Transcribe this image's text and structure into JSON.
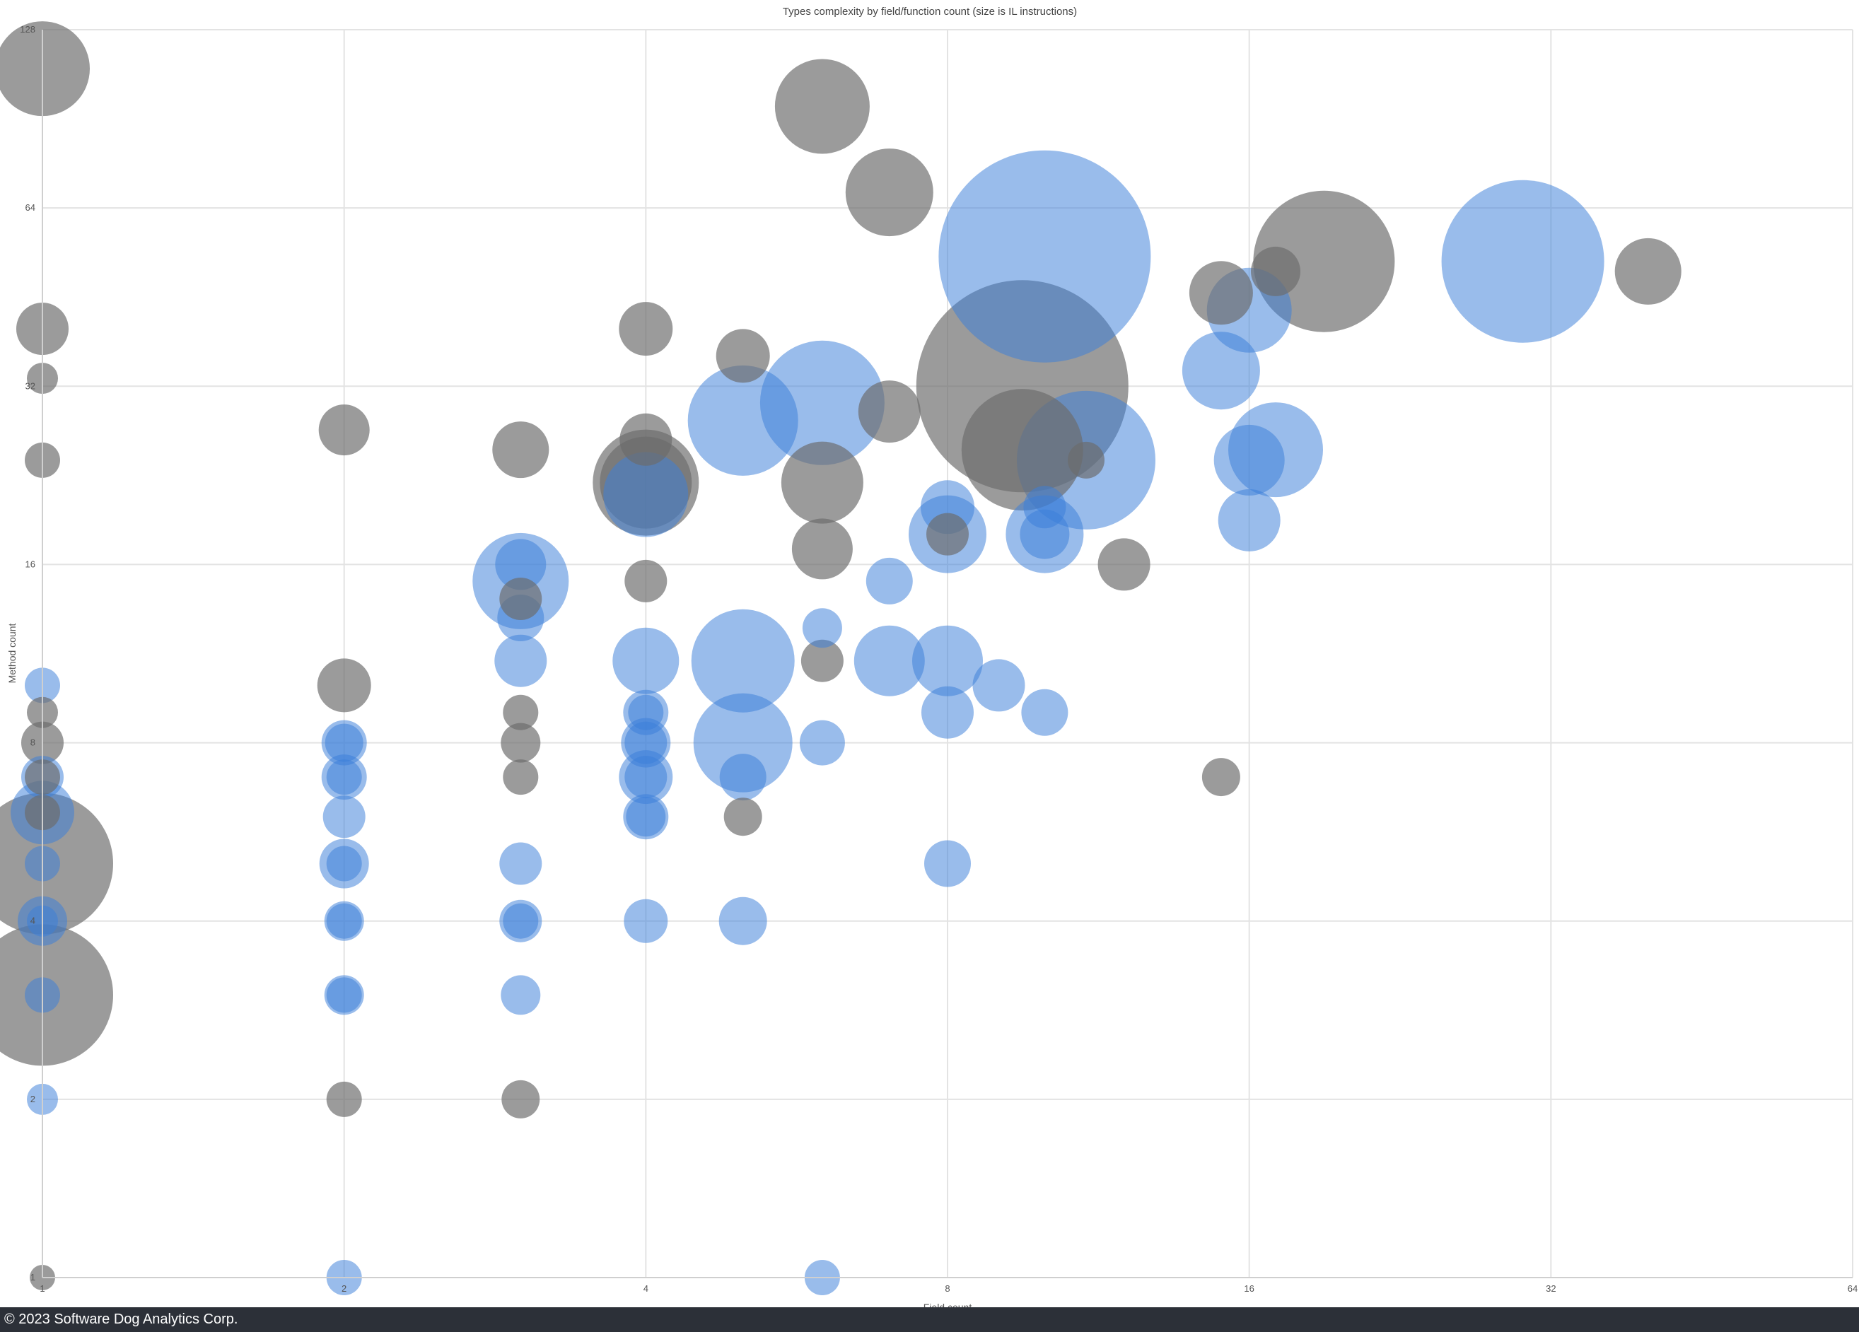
{
  "footer": {
    "text": "© 2023 Software Dog Analytics Corp."
  },
  "chart_data": {
    "type": "scatter",
    "title": "Types complexity by field/function count (size is IL instructions)",
    "xlabel": "Field count",
    "ylabel": "Method count",
    "xscale": "log2",
    "yscale": "log2",
    "xlim": [
      1,
      64
    ],
    "ylim": [
      1,
      128
    ],
    "xticks": [
      1,
      2,
      4,
      8,
      16,
      32,
      64
    ],
    "yticks": [
      1,
      2,
      4,
      8,
      16,
      32,
      64,
      128
    ],
    "grid": true,
    "legend": "none",
    "colors": {
      "gray": "#6b6b6b",
      "blue": "#3b7fd9"
    },
    "size_units": "relative IL instruction size",
    "points": [
      {
        "x": 1,
        "y": 110,
        "s": 67,
        "c": "gray"
      },
      {
        "x": 1,
        "y": 40,
        "s": 37,
        "c": "gray"
      },
      {
        "x": 1,
        "y": 33,
        "s": 22,
        "c": "gray"
      },
      {
        "x": 1,
        "y": 24,
        "s": 25,
        "c": "gray"
      },
      {
        "x": 1,
        "y": 10,
        "s": 25,
        "c": "blue"
      },
      {
        "x": 1,
        "y": 9,
        "s": 22,
        "c": "gray"
      },
      {
        "x": 1,
        "y": 8,
        "s": 30,
        "c": "gray"
      },
      {
        "x": 1,
        "y": 7,
        "s": 30,
        "c": "blue"
      },
      {
        "x": 1,
        "y": 7,
        "s": 25,
        "c": "gray"
      },
      {
        "x": 1,
        "y": 6.1,
        "s": 45,
        "c": "blue"
      },
      {
        "x": 1,
        "y": 6.1,
        "s": 25,
        "c": "gray"
      },
      {
        "x": 1,
        "y": 5,
        "s": 100,
        "c": "gray"
      },
      {
        "x": 1,
        "y": 5,
        "s": 25,
        "c": "blue"
      },
      {
        "x": 1,
        "y": 4,
        "s": 35,
        "c": "blue"
      },
      {
        "x": 1,
        "y": 4,
        "s": 22,
        "c": "blue"
      },
      {
        "x": 1,
        "y": 3,
        "s": 100,
        "c": "gray"
      },
      {
        "x": 1,
        "y": 3,
        "s": 25,
        "c": "blue"
      },
      {
        "x": 1,
        "y": 2,
        "s": 22,
        "c": "blue"
      },
      {
        "x": 1,
        "y": 1,
        "s": 18,
        "c": "gray"
      },
      {
        "x": 2,
        "y": 27,
        "s": 36,
        "c": "gray"
      },
      {
        "x": 2,
        "y": 10,
        "s": 38,
        "c": "gray"
      },
      {
        "x": 2,
        "y": 8,
        "s": 32,
        "c": "blue"
      },
      {
        "x": 2,
        "y": 8,
        "s": 27,
        "c": "blue"
      },
      {
        "x": 2,
        "y": 7,
        "s": 32,
        "c": "blue"
      },
      {
        "x": 2,
        "y": 7,
        "s": 25,
        "c": "blue"
      },
      {
        "x": 2,
        "y": 6,
        "s": 30,
        "c": "blue"
      },
      {
        "x": 2,
        "y": 5,
        "s": 35,
        "c": "blue"
      },
      {
        "x": 2,
        "y": 5,
        "s": 25,
        "c": "blue"
      },
      {
        "x": 2,
        "y": 4,
        "s": 28,
        "c": "blue"
      },
      {
        "x": 2,
        "y": 4,
        "s": 25,
        "c": "blue"
      },
      {
        "x": 2,
        "y": 3,
        "s": 28,
        "c": "blue"
      },
      {
        "x": 2,
        "y": 3,
        "s": 25,
        "c": "blue"
      },
      {
        "x": 2,
        "y": 2,
        "s": 25,
        "c": "gray"
      },
      {
        "x": 2,
        "y": 1,
        "s": 25,
        "c": "blue"
      },
      {
        "x": 3,
        "y": 25,
        "s": 40,
        "c": "gray"
      },
      {
        "x": 3,
        "y": 15,
        "s": 68,
        "c": "blue"
      },
      {
        "x": 3,
        "y": 16,
        "s": 36,
        "c": "blue"
      },
      {
        "x": 3,
        "y": 14,
        "s": 30,
        "c": "gray"
      },
      {
        "x": 3,
        "y": 13,
        "s": 33,
        "c": "blue"
      },
      {
        "x": 3,
        "y": 11,
        "s": 37,
        "c": "blue"
      },
      {
        "x": 3,
        "y": 9,
        "s": 25,
        "c": "gray"
      },
      {
        "x": 3,
        "y": 8,
        "s": 28,
        "c": "gray"
      },
      {
        "x": 3,
        "y": 7,
        "s": 25,
        "c": "gray"
      },
      {
        "x": 3,
        "y": 5,
        "s": 30,
        "c": "blue"
      },
      {
        "x": 3,
        "y": 4,
        "s": 30,
        "c": "blue"
      },
      {
        "x": 3,
        "y": 4,
        "s": 25,
        "c": "blue"
      },
      {
        "x": 3,
        "y": 3,
        "s": 28,
        "c": "blue"
      },
      {
        "x": 3,
        "y": 2,
        "s": 27,
        "c": "gray"
      },
      {
        "x": 4,
        "y": 40,
        "s": 38,
        "c": "gray"
      },
      {
        "x": 4,
        "y": 26,
        "s": 37,
        "c": "gray"
      },
      {
        "x": 4,
        "y": 22,
        "s": 75,
        "c": "gray"
      },
      {
        "x": 4,
        "y": 22,
        "s": 65,
        "c": "gray"
      },
      {
        "x": 4,
        "y": 21,
        "s": 60,
        "c": "blue"
      },
      {
        "x": 4,
        "y": 15,
        "s": 30,
        "c": "gray"
      },
      {
        "x": 4,
        "y": 11,
        "s": 47,
        "c": "blue"
      },
      {
        "x": 4,
        "y": 9,
        "s": 32,
        "c": "blue"
      },
      {
        "x": 4,
        "y": 9,
        "s": 25,
        "c": "blue"
      },
      {
        "x": 4,
        "y": 8,
        "s": 35,
        "c": "blue"
      },
      {
        "x": 4,
        "y": 8,
        "s": 30,
        "c": "blue"
      },
      {
        "x": 4,
        "y": 7,
        "s": 38,
        "c": "blue"
      },
      {
        "x": 4,
        "y": 7,
        "s": 30,
        "c": "blue"
      },
      {
        "x": 4,
        "y": 6,
        "s": 32,
        "c": "blue"
      },
      {
        "x": 4,
        "y": 6,
        "s": 28,
        "c": "blue"
      },
      {
        "x": 4,
        "y": 4,
        "s": 31,
        "c": "blue"
      },
      {
        "x": 5,
        "y": 36,
        "s": 38,
        "c": "gray"
      },
      {
        "x": 5,
        "y": 28,
        "s": 78,
        "c": "blue"
      },
      {
        "x": 5,
        "y": 11,
        "s": 73,
        "c": "blue"
      },
      {
        "x": 5,
        "y": 8,
        "s": 70,
        "c": "blue"
      },
      {
        "x": 5,
        "y": 7,
        "s": 33,
        "c": "blue"
      },
      {
        "x": 5,
        "y": 6,
        "s": 27,
        "c": "gray"
      },
      {
        "x": 5,
        "y": 4,
        "s": 34,
        "c": "blue"
      },
      {
        "x": 6,
        "y": 95,
        "s": 67,
        "c": "gray"
      },
      {
        "x": 6,
        "y": 30,
        "s": 88,
        "c": "blue"
      },
      {
        "x": 6,
        "y": 22,
        "s": 58,
        "c": "gray"
      },
      {
        "x": 6,
        "y": 17,
        "s": 43,
        "c": "gray"
      },
      {
        "x": 6,
        "y": 12.5,
        "s": 28,
        "c": "blue"
      },
      {
        "x": 6,
        "y": 11,
        "s": 30,
        "c": "gray"
      },
      {
        "x": 6,
        "y": 8,
        "s": 32,
        "c": "blue"
      },
      {
        "x": 6,
        "y": 1,
        "s": 25,
        "c": "blue"
      },
      {
        "x": 7,
        "y": 68,
        "s": 62,
        "c": "gray"
      },
      {
        "x": 7,
        "y": 29,
        "s": 44,
        "c": "gray"
      },
      {
        "x": 7,
        "y": 15,
        "s": 33,
        "c": "blue"
      },
      {
        "x": 7,
        "y": 11,
        "s": 50,
        "c": "blue"
      },
      {
        "x": 8,
        "y": 20,
        "s": 38,
        "c": "blue"
      },
      {
        "x": 8,
        "y": 18,
        "s": 55,
        "c": "blue"
      },
      {
        "x": 8,
        "y": 18,
        "s": 30,
        "c": "gray"
      },
      {
        "x": 8,
        "y": 11,
        "s": 50,
        "c": "blue"
      },
      {
        "x": 8,
        "y": 9,
        "s": 37,
        "c": "blue"
      },
      {
        "x": 8,
        "y": 5,
        "s": 33,
        "c": "blue"
      },
      {
        "x": 9,
        "y": 10,
        "s": 37,
        "c": "blue"
      },
      {
        "x": 9.5,
        "y": 32,
        "s": 150,
        "c": "gray"
      },
      {
        "x": 9.5,
        "y": 25,
        "s": 86,
        "c": "gray"
      },
      {
        "x": 10,
        "y": 53,
        "s": 150,
        "c": "blue"
      },
      {
        "x": 10,
        "y": 20,
        "s": 30,
        "c": "blue"
      },
      {
        "x": 10,
        "y": 18,
        "s": 55,
        "c": "blue"
      },
      {
        "x": 10,
        "y": 18,
        "s": 35,
        "c": "blue"
      },
      {
        "x": 10,
        "y": 9,
        "s": 33,
        "c": "blue"
      },
      {
        "x": 11,
        "y": 24,
        "s": 98,
        "c": "blue"
      },
      {
        "x": 11,
        "y": 24,
        "s": 26,
        "c": "gray"
      },
      {
        "x": 12,
        "y": 16,
        "s": 37,
        "c": "gray"
      },
      {
        "x": 15,
        "y": 46,
        "s": 45,
        "c": "gray"
      },
      {
        "x": 15,
        "y": 34,
        "s": 55,
        "c": "blue"
      },
      {
        "x": 15,
        "y": 7,
        "s": 27,
        "c": "gray"
      },
      {
        "x": 16,
        "y": 43,
        "s": 60,
        "c": "blue"
      },
      {
        "x": 16,
        "y": 24,
        "s": 50,
        "c": "blue"
      },
      {
        "x": 16,
        "y": 19,
        "s": 44,
        "c": "blue"
      },
      {
        "x": 17,
        "y": 50,
        "s": 35,
        "c": "gray"
      },
      {
        "x": 17,
        "y": 25,
        "s": 67,
        "c": "blue"
      },
      {
        "x": 19,
        "y": 52,
        "s": 100,
        "c": "gray"
      },
      {
        "x": 30,
        "y": 52,
        "s": 115,
        "c": "blue"
      },
      {
        "x": 40,
        "y": 50,
        "s": 47,
        "c": "gray"
      }
    ]
  }
}
